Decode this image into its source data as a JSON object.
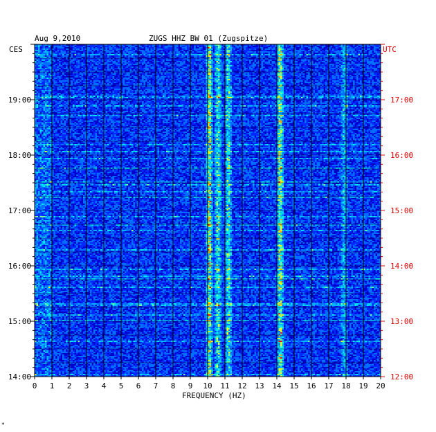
{
  "header": {
    "date": "Aug 9,2010",
    "station": "ZUGS HHZ BW 01 (Zugspitze)",
    "left_tz": "CES",
    "right_tz": "UTC"
  },
  "footer": {
    "mark": "*"
  },
  "colors": {
    "background": "#0000c8",
    "low": "#0010d8",
    "mid": "#00a0ff",
    "high": "#ffff00",
    "peak": "#ff0000",
    "utc_label": "#d40000",
    "grid": "#000000"
  },
  "chart_data": {
    "type": "heatmap",
    "title": "ZUGS HHZ BW 01 (Zugspitze)",
    "xlabel": "FREQUENCY (HZ)",
    "ylabel": "",
    "xlim": [
      0,
      20
    ],
    "x_ticks": [
      "0",
      "1",
      "2",
      "3",
      "4",
      "5",
      "6",
      "7",
      "8",
      "9",
      "10",
      "11",
      "12",
      "13",
      "14",
      "15",
      "16",
      "17",
      "18",
      "19",
      "20"
    ],
    "y_ticks_left": [
      "19:00",
      "18:00",
      "17:00",
      "16:00",
      "15:00",
      "14:00"
    ],
    "y_ticks_right": [
      "17:00",
      "16:00",
      "15:00",
      "14:00",
      "13:00",
      "12:00"
    ],
    "time_range_utc": [
      "12:00",
      "18:00"
    ],
    "energy_bands_hz": [
      {
        "center": 10.1,
        "intensity": "high"
      },
      {
        "center": 10.6,
        "intensity": "medium"
      },
      {
        "center": 11.2,
        "intensity": "medium"
      },
      {
        "center": 14.2,
        "intensity": "high"
      },
      {
        "center": 17.9,
        "intensity": "low"
      }
    ]
  }
}
